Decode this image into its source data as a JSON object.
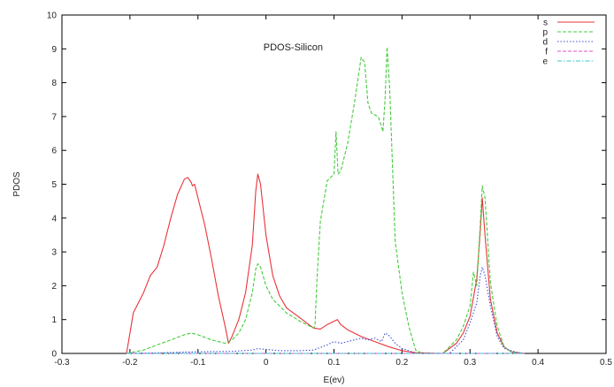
{
  "chart_data": {
    "type": "line",
    "title": "PDOS-Silicon",
    "xlabel": "E(ev)",
    "ylabel": "PDOS",
    "xlim": [
      -0.3,
      0.5
    ],
    "ylim": [
      0,
      10
    ],
    "xticks": [
      "-0.3",
      "-0.2",
      "-0.1",
      "0",
      "0.1",
      "0.2",
      "0.3",
      "0.4",
      "0.5"
    ],
    "yticks": [
      "0",
      "1",
      "2",
      "3",
      "4",
      "5",
      "6",
      "7",
      "8",
      "9",
      "10"
    ],
    "grid": false,
    "legend_position": "top-right",
    "series": [
      {
        "name": "s",
        "color": "#e8333a",
        "dash": "solid",
        "points": [
          [
            -0.205,
            0
          ],
          [
            -0.2,
            0.6
          ],
          [
            -0.195,
            1.2
          ],
          [
            -0.19,
            1.4
          ],
          [
            -0.18,
            1.8
          ],
          [
            -0.17,
            2.3
          ],
          [
            -0.16,
            2.55
          ],
          [
            -0.15,
            3.2
          ],
          [
            -0.14,
            4.0
          ],
          [
            -0.13,
            4.7
          ],
          [
            -0.12,
            5.15
          ],
          [
            -0.115,
            5.2
          ],
          [
            -0.11,
            5.05
          ],
          [
            -0.108,
            4.95
          ],
          [
            -0.105,
            5.0
          ],
          [
            -0.1,
            4.6
          ],
          [
            -0.09,
            3.8
          ],
          [
            -0.08,
            2.8
          ],
          [
            -0.07,
            1.7
          ],
          [
            -0.06,
            0.8
          ],
          [
            -0.055,
            0.3
          ],
          [
            -0.05,
            0.5
          ],
          [
            -0.04,
            1.0
          ],
          [
            -0.03,
            1.8
          ],
          [
            -0.02,
            3.2
          ],
          [
            -0.015,
            4.8
          ],
          [
            -0.012,
            5.3
          ],
          [
            -0.008,
            5.0
          ],
          [
            0,
            3.5
          ],
          [
            0.01,
            2.3
          ],
          [
            0.02,
            1.7
          ],
          [
            0.03,
            1.35
          ],
          [
            0.05,
            1.05
          ],
          [
            0.07,
            0.75
          ],
          [
            0.08,
            0.72
          ],
          [
            0.09,
            0.85
          ],
          [
            0.1,
            0.95
          ],
          [
            0.105,
            1.0
          ],
          [
            0.11,
            0.85
          ],
          [
            0.12,
            0.7
          ],
          [
            0.14,
            0.5
          ],
          [
            0.16,
            0.35
          ],
          [
            0.18,
            0.2
          ],
          [
            0.2,
            0.08
          ],
          [
            0.22,
            0.02
          ],
          [
            0.26,
            0
          ],
          [
            0.28,
            0.3
          ],
          [
            0.29,
            0.6
          ],
          [
            0.3,
            1.1
          ],
          [
            0.31,
            2.2
          ],
          [
            0.315,
            3.6
          ],
          [
            0.318,
            4.6
          ],
          [
            0.322,
            3.5
          ],
          [
            0.33,
            1.6
          ],
          [
            0.34,
            0.6
          ],
          [
            0.35,
            0.2
          ],
          [
            0.36,
            0.05
          ],
          [
            0.38,
            0
          ]
        ]
      },
      {
        "name": "p",
        "color": "#44cc3c",
        "dash": "dashed",
        "points": [
          [
            -0.205,
            0
          ],
          [
            -0.18,
            0.1
          ],
          [
            -0.16,
            0.25
          ],
          [
            -0.14,
            0.4
          ],
          [
            -0.12,
            0.55
          ],
          [
            -0.11,
            0.6
          ],
          [
            -0.1,
            0.55
          ],
          [
            -0.08,
            0.4
          ],
          [
            -0.06,
            0.3
          ],
          [
            -0.05,
            0.4
          ],
          [
            -0.04,
            0.6
          ],
          [
            -0.03,
            1.0
          ],
          [
            -0.02,
            1.8
          ],
          [
            -0.015,
            2.5
          ],
          [
            -0.012,
            2.65
          ],
          [
            -0.008,
            2.55
          ],
          [
            0,
            2.0
          ],
          [
            0.01,
            1.6
          ],
          [
            0.03,
            1.2
          ],
          [
            0.05,
            0.95
          ],
          [
            0.07,
            0.75
          ],
          [
            0.072,
            0.8
          ],
          [
            0.075,
            2.2
          ],
          [
            0.08,
            3.9
          ],
          [
            0.09,
            5.1
          ],
          [
            0.1,
            5.3
          ],
          [
            0.103,
            6.55
          ],
          [
            0.106,
            5.3
          ],
          [
            0.11,
            5.4
          ],
          [
            0.12,
            6.2
          ],
          [
            0.13,
            7.4
          ],
          [
            0.14,
            8.75
          ],
          [
            0.145,
            8.6
          ],
          [
            0.15,
            7.4
          ],
          [
            0.155,
            7.1
          ],
          [
            0.165,
            7.0
          ],
          [
            0.17,
            6.7
          ],
          [
            0.172,
            6.55
          ],
          [
            0.175,
            7.5
          ],
          [
            0.178,
            9.05
          ],
          [
            0.182,
            7.8
          ],
          [
            0.19,
            3.3
          ],
          [
            0.2,
            1.8
          ],
          [
            0.21,
            0.8
          ],
          [
            0.22,
            0.1
          ],
          [
            0.23,
            0
          ],
          [
            0.26,
            0
          ],
          [
            0.28,
            0.4
          ],
          [
            0.29,
            0.8
          ],
          [
            0.3,
            1.4
          ],
          [
            0.305,
            2.4
          ],
          [
            0.31,
            2.0
          ],
          [
            0.315,
            3.8
          ],
          [
            0.318,
            4.95
          ],
          [
            0.322,
            4.6
          ],
          [
            0.33,
            2.1
          ],
          [
            0.34,
            0.8
          ],
          [
            0.35,
            0.2
          ],
          [
            0.36,
            0.05
          ],
          [
            0.38,
            0
          ]
        ]
      },
      {
        "name": "d",
        "color": "#3a4fd8",
        "dash": "dotted",
        "points": [
          [
            -0.205,
            0
          ],
          [
            -0.15,
            0.02
          ],
          [
            -0.1,
            0.05
          ],
          [
            -0.05,
            0.06
          ],
          [
            -0.02,
            0.1
          ],
          [
            -0.012,
            0.14
          ],
          [
            0,
            0.12
          ],
          [
            0.02,
            0.08
          ],
          [
            0.05,
            0.08
          ],
          [
            0.07,
            0.1
          ],
          [
            0.09,
            0.25
          ],
          [
            0.1,
            0.35
          ],
          [
            0.11,
            0.3
          ],
          [
            0.12,
            0.35
          ],
          [
            0.13,
            0.4
          ],
          [
            0.14,
            0.45
          ],
          [
            0.15,
            0.4
          ],
          [
            0.16,
            0.45
          ],
          [
            0.17,
            0.35
          ],
          [
            0.175,
            0.6
          ],
          [
            0.18,
            0.55
          ],
          [
            0.19,
            0.3
          ],
          [
            0.2,
            0.15
          ],
          [
            0.21,
            0.08
          ],
          [
            0.22,
            0
          ],
          [
            0.27,
            0
          ],
          [
            0.29,
            0.4
          ],
          [
            0.3,
            0.9
          ],
          [
            0.31,
            1.5
          ],
          [
            0.315,
            2.3
          ],
          [
            0.318,
            2.55
          ],
          [
            0.322,
            2.3
          ],
          [
            0.33,
            1.4
          ],
          [
            0.34,
            0.5
          ],
          [
            0.35,
            0.15
          ],
          [
            0.37,
            0.02
          ],
          [
            0.38,
            0
          ]
        ]
      },
      {
        "name": "f",
        "color": "#e64ad2",
        "dash": "dashed",
        "points": [
          [
            -0.205,
            0
          ],
          [
            0.38,
            0
          ]
        ]
      },
      {
        "name": "e",
        "color": "#36c6d6",
        "dash": "dashdot",
        "points": [
          [
            -0.205,
            0
          ],
          [
            0.38,
            0
          ]
        ]
      }
    ]
  }
}
